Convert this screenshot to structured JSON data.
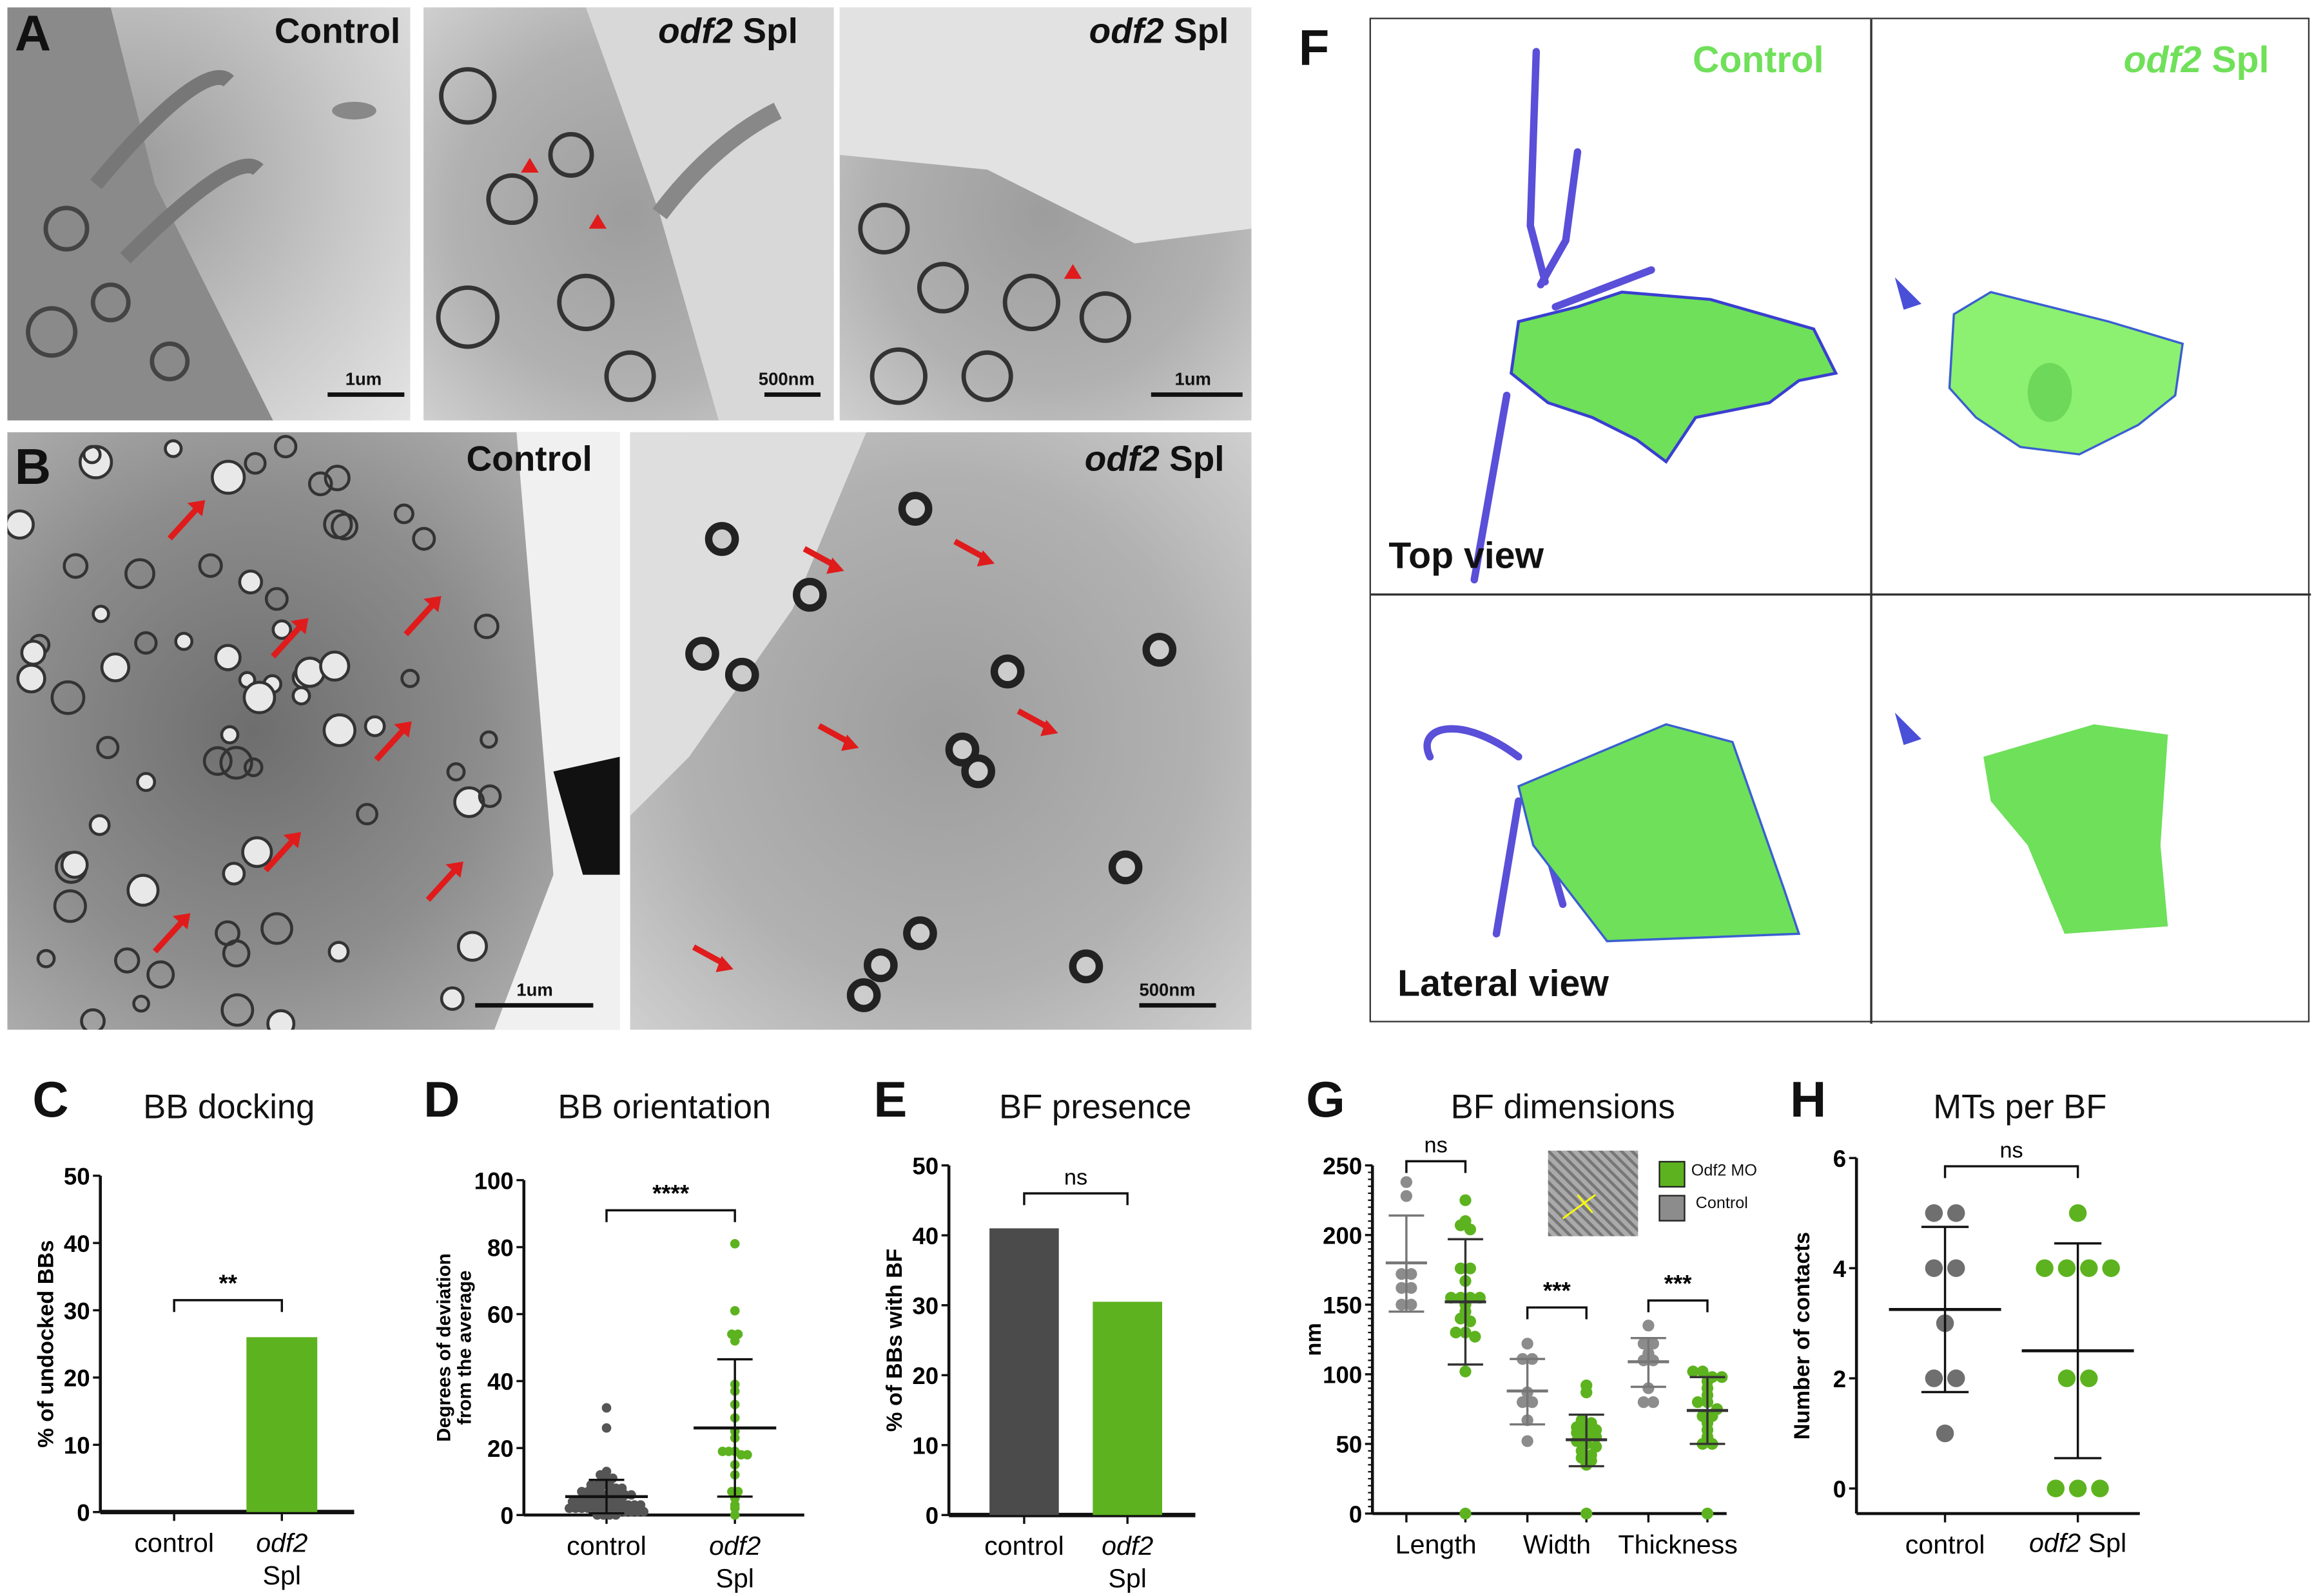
{
  "panels": {
    "A": {
      "letter": "A",
      "images": [
        {
          "label": "Control",
          "scale": "1um"
        },
        {
          "label_italic": "odf2",
          "label": "Spl",
          "scale": "500nm"
        },
        {
          "label_italic": "odf2",
          "label": "Spl",
          "scale": "1um"
        }
      ]
    },
    "B": {
      "letter": "B",
      "images": [
        {
          "label": "Control",
          "scale": "1um"
        },
        {
          "label_italic": "odf2",
          "label": "Spl",
          "scale": "500nm"
        }
      ]
    },
    "F": {
      "letter": "F",
      "col_control": "Control",
      "col_odf2_italic": "odf2",
      "col_odf2": "Spl",
      "row_top": "Top view",
      "row_lateral": "Lateral view"
    },
    "C": {
      "letter": "C"
    },
    "D": {
      "letter": "D"
    },
    "E": {
      "letter": "E"
    },
    "G": {
      "letter": "G"
    },
    "H": {
      "letter": "H"
    }
  },
  "colors": {
    "green": "#5db31f",
    "control_gray": "#8c8c8c",
    "control_dark": "#4b4b4b",
    "arrow_red": "#e01b1b",
    "render_green": "#6ee05a",
    "render_blue": "#3a3fd0"
  },
  "chart_data": [
    {
      "id": "C",
      "type": "bar",
      "title": "BB docking",
      "ylabel": "% of undocked BBs",
      "ylim": [
        0,
        50
      ],
      "yticks": [
        0,
        10,
        20,
        30,
        40,
        50
      ],
      "categories": [
        "control",
        "odf2 Spl"
      ],
      "values": [
        0,
        26
      ],
      "bar_colors": [
        "#4b4b4b",
        "#5db31f"
      ],
      "significance": [
        {
          "between": [
            0,
            1
          ],
          "label": "**",
          "y": 31.5
        }
      ]
    },
    {
      "id": "D",
      "type": "scatter",
      "title": "BB orientation",
      "ylabel": "Degrees of deviation from the average",
      "ylim": [
        0,
        100
      ],
      "yticks": [
        0,
        20,
        40,
        60,
        80,
        100
      ],
      "categories": [
        "control",
        "odf2 Spl"
      ],
      "series": [
        {
          "values": [
            32,
            26,
            13,
            12,
            11,
            11,
            10,
            10,
            9,
            9,
            9,
            8,
            8,
            8,
            7,
            7,
            7,
            7,
            6,
            6,
            6,
            6,
            6,
            5,
            5,
            5,
            5,
            5,
            5,
            4,
            4,
            4,
            4,
            4,
            4,
            3,
            3,
            3,
            3,
            3,
            3,
            2,
            2,
            2,
            2,
            2,
            2,
            2,
            1,
            1,
            1,
            1,
            1,
            1,
            0,
            0,
            0,
            0
          ],
          "mean": 5.5,
          "sd_low": 0.5,
          "sd_high": 10.5,
          "color": "#555555"
        },
        {
          "values": [
            81,
            61,
            54,
            54,
            52,
            39,
            37,
            33,
            29,
            25,
            23,
            19,
            19,
            19,
            18,
            18,
            15,
            12,
            7,
            7,
            5,
            3,
            2,
            0
          ],
          "mean": 26,
          "sd_low": 5.5,
          "sd_high": 46.5,
          "color": "#5db31f"
        }
      ],
      "significance": [
        {
          "between": [
            0,
            1
          ],
          "label": "****",
          "y": 91
        }
      ]
    },
    {
      "id": "E",
      "type": "bar",
      "title": "BF presence",
      "ylabel": "% of BBs with BF",
      "ylim": [
        0,
        50
      ],
      "yticks": [
        0,
        10,
        20,
        30,
        40,
        50
      ],
      "categories": [
        "control",
        "odf2 Spl"
      ],
      "values": [
        41,
        30.5
      ],
      "bar_colors": [
        "#4b4b4b",
        "#5db31f"
      ],
      "significance": [
        {
          "between": [
            0,
            1
          ],
          "label": "ns",
          "y": 46
        }
      ]
    },
    {
      "id": "G",
      "type": "scatter",
      "title": "BF dimensions",
      "ylabel": "nm",
      "ylim": [
        0,
        250
      ],
      "yticks": [
        0,
        50,
        100,
        150,
        200,
        250
      ],
      "categories": [
        "Length",
        "Width",
        "Thickness"
      ],
      "legend": [
        {
          "label": "Odf2 MO",
          "color": "#5db31f"
        },
        {
          "label": "Control",
          "color": "#8c8c8c"
        }
      ],
      "series": [
        {
          "group": "Length",
          "name": "Control",
          "values": [
            238,
            228,
            172,
            172,
            162,
            162,
            150,
            150
          ],
          "mean": 180,
          "sd_low": 145,
          "sd_high": 214,
          "color": "#8c8c8c"
        },
        {
          "group": "Length",
          "name": "Odf2 MO",
          "values": [
            225,
            210,
            207,
            204,
            176,
            176,
            167,
            155,
            155,
            155,
            155,
            150,
            145,
            140,
            138,
            130,
            130,
            127,
            102,
            0
          ],
          "mean": 152,
          "sd_low": 107,
          "sd_high": 197,
          "color": "#5db31f"
        },
        {
          "group": "Width",
          "name": "Control",
          "values": [
            122,
            111,
            111,
            87,
            80,
            80,
            67,
            52
          ],
          "mean": 88,
          "sd_low": 64,
          "sd_high": 111,
          "color": "#8c8c8c"
        },
        {
          "group": "Width",
          "name": "Odf2 MO",
          "values": [
            92,
            87,
            67,
            65,
            62,
            60,
            60,
            58,
            55,
            55,
            52,
            50,
            48,
            45,
            42,
            40,
            38,
            35,
            0
          ],
          "mean": 53,
          "sd_low": 34,
          "sd_high": 71,
          "color": "#5db31f"
        },
        {
          "group": "Thickness",
          "name": "Control",
          "values": [
            135,
            122,
            122,
            115,
            110,
            110,
            90,
            80,
            80
          ],
          "mean": 109,
          "sd_low": 91,
          "sd_high": 126,
          "color": "#8c8c8c"
        },
        {
          "group": "Thickness",
          "name": "Odf2 MO",
          "values": [
            102,
            102,
            98,
            98,
            95,
            90,
            85,
            80,
            80,
            75,
            70,
            70,
            65,
            60,
            55,
            50,
            50,
            0
          ],
          "mean": 74,
          "sd_low": 50,
          "sd_high": 98,
          "color": "#5db31f"
        }
      ],
      "significance": [
        {
          "between": [
            0,
            1
          ],
          "label": "ns",
          "y": 253
        },
        {
          "between": [
            2,
            3
          ],
          "label": "***",
          "y": 148
        },
        {
          "between": [
            4,
            5
          ],
          "label": "***",
          "y": 153
        }
      ]
    },
    {
      "id": "H",
      "type": "scatter",
      "title": "MTs per BF",
      "ylabel": "Number of contacts",
      "ylim": [
        -0.5,
        6
      ],
      "yticks": [
        0,
        2,
        4,
        6
      ],
      "categories": [
        "control",
        "odf2 Spl"
      ],
      "series": [
        {
          "values": [
            5,
            5,
            4,
            4,
            3,
            2,
            2,
            1
          ],
          "mean": 3.25,
          "sd_low": 1.75,
          "sd_high": 4.75,
          "color": "#6f6f6f"
        },
        {
          "values": [
            5,
            4,
            4,
            4,
            4,
            2,
            2,
            0,
            0,
            0
          ],
          "mean": 2.5,
          "sd_low": 0.55,
          "sd_high": 4.45,
          "color": "#5db31f"
        }
      ],
      "significance": [
        {
          "between": [
            0,
            1
          ],
          "label": "ns",
          "y": 5.85
        }
      ]
    }
  ]
}
